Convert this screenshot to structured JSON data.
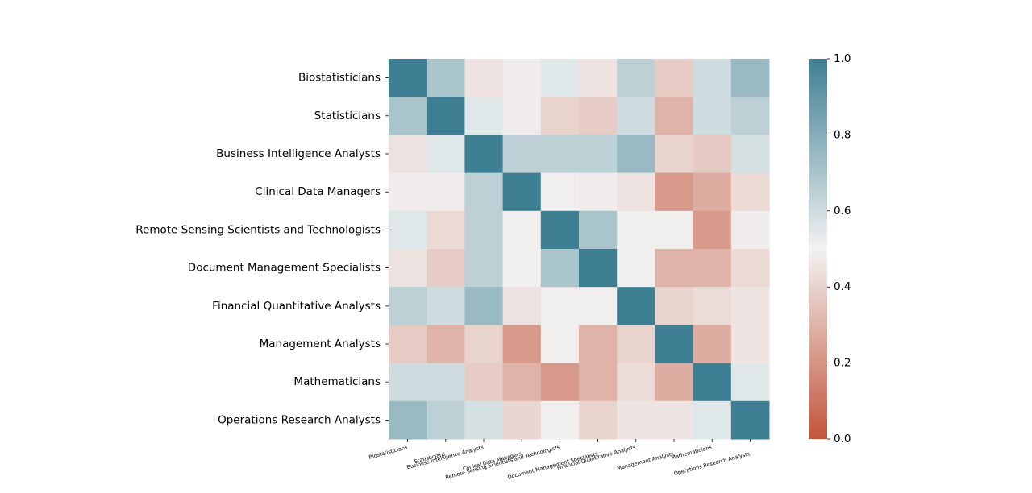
{
  "chart_data": {
    "type": "heatmap",
    "title": "",
    "xlabel": "",
    "ylabel": "",
    "labels": [
      "Biostatisticians",
      "Statisticians",
      "Business Intelligence Analysts",
      "Clinical Data Managers",
      "Remote Sensing Scientists and Technologists",
      "Document Management Specialists",
      "Financial Quantitative Analysts",
      "Management Analysts",
      "Mathematicians",
      "Operations Research Analysts"
    ],
    "matrix": [
      [
        1.0,
        0.7,
        0.45,
        0.48,
        0.55,
        0.45,
        0.65,
        0.38,
        0.6,
        0.75
      ],
      [
        0.7,
        1.0,
        0.55,
        0.48,
        0.4,
        0.38,
        0.6,
        0.3,
        0.6,
        0.65
      ],
      [
        0.45,
        0.55,
        1.0,
        0.65,
        0.65,
        0.65,
        0.75,
        0.4,
        0.37,
        0.58
      ],
      [
        0.48,
        0.48,
        0.65,
        1.0,
        0.49,
        0.48,
        0.45,
        0.22,
        0.28,
        0.42
      ],
      [
        0.55,
        0.42,
        0.65,
        0.49,
        1.0,
        0.7,
        0.49,
        0.49,
        0.22,
        0.48
      ],
      [
        0.45,
        0.38,
        0.65,
        0.49,
        0.7,
        1.0,
        0.49,
        0.3,
        0.3,
        0.42
      ],
      [
        0.65,
        0.6,
        0.75,
        0.45,
        0.49,
        0.49,
        1.0,
        0.4,
        0.43,
        0.46
      ],
      [
        0.38,
        0.3,
        0.4,
        0.22,
        0.49,
        0.3,
        0.4,
        1.0,
        0.28,
        0.46
      ],
      [
        0.6,
        0.6,
        0.38,
        0.3,
        0.22,
        0.3,
        0.43,
        0.28,
        1.0,
        0.55
      ],
      [
        0.75,
        0.65,
        0.58,
        0.41,
        0.49,
        0.4,
        0.46,
        0.46,
        0.55,
        1.0
      ]
    ],
    "vmin": 0.0,
    "vmax": 1.0,
    "colorbar_ticks": [
      "0.0",
      "0.2",
      "0.4",
      "0.6",
      "0.8",
      "1.0"
    ],
    "colormap": {
      "low": "#c3553a",
      "mid": "#f2f2f2",
      "high": "#3f7f93"
    },
    "grid": false,
    "legend": "colorbar-right"
  }
}
